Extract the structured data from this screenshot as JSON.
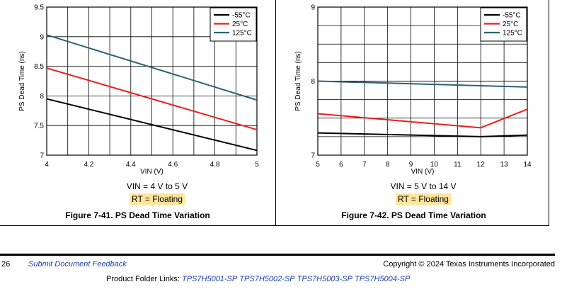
{
  "chart_data": [
    {
      "type": "line",
      "xlabel": "VIN (V)",
      "ylabel": "PS Dead Time (ns)",
      "xlim": [
        4,
        5
      ],
      "ylim": [
        7,
        9.5
      ],
      "x_ticks": [
        "4",
        "4.2",
        "4.4",
        "4.6",
        "4.8",
        "5"
      ],
      "y_ticks": [
        "7",
        "7.5",
        "8",
        "8.5",
        "9",
        "9.5"
      ],
      "series": [
        {
          "name": "-55°C",
          "color": "#000000",
          "x": [
            4,
            5
          ],
          "y": [
            7.95,
            7.08
          ]
        },
        {
          "name": "25°C",
          "color": "#e8211e",
          "x": [
            4,
            5
          ],
          "y": [
            8.47,
            7.43
          ]
        },
        {
          "name": "125°C",
          "color": "#2d6275",
          "x": [
            4,
            5
          ],
          "y": [
            9.03,
            7.93
          ]
        }
      ],
      "legend": "top-right",
      "grid": true,
      "conditions": [
        "VIN = 4 V to 5 V",
        "RT = Floating"
      ],
      "caption": "Figure 7-41. PS Dead Time Variation"
    },
    {
      "type": "line",
      "xlabel": "VIN (V)",
      "ylabel": "PS Dead Time (ns)",
      "xlim": [
        5,
        14
      ],
      "ylim": [
        7,
        9
      ],
      "x_ticks": [
        "5",
        "6",
        "7",
        "8",
        "9",
        "10",
        "11",
        "12",
        "13",
        "14"
      ],
      "y_ticks": [
        "7",
        "8",
        "9"
      ],
      "series": [
        {
          "name": "-55°C",
          "color": "#000000",
          "x": [
            5,
            12,
            14
          ],
          "y": [
            7.3,
            7.25,
            7.27
          ]
        },
        {
          "name": "25°C",
          "color": "#e8211e",
          "x": [
            5,
            12,
            14
          ],
          "y": [
            7.56,
            7.37,
            7.62
          ]
        },
        {
          "name": "125°C",
          "color": "#2d6275",
          "x": [
            5,
            14
          ],
          "y": [
            8.0,
            7.92
          ]
        }
      ],
      "legend": "top-right",
      "grid": true,
      "conditions": [
        "VIN = 5 V to 14 V",
        "RT = Floating"
      ],
      "caption": "Figure 7-42. PS Dead Time Variation"
    }
  ],
  "footer": {
    "page_number": "26",
    "feedback_link": "Submit Document Feedback",
    "copyright": "Copyright © 2024 Texas Instruments Incorporated",
    "product_links_label": "Product Folder Links:",
    "product_links": [
      "TPS7H5001-SP",
      "TPS7H5002-SP",
      "TPS7H5003-SP",
      "TPS7H5004-SP"
    ]
  }
}
